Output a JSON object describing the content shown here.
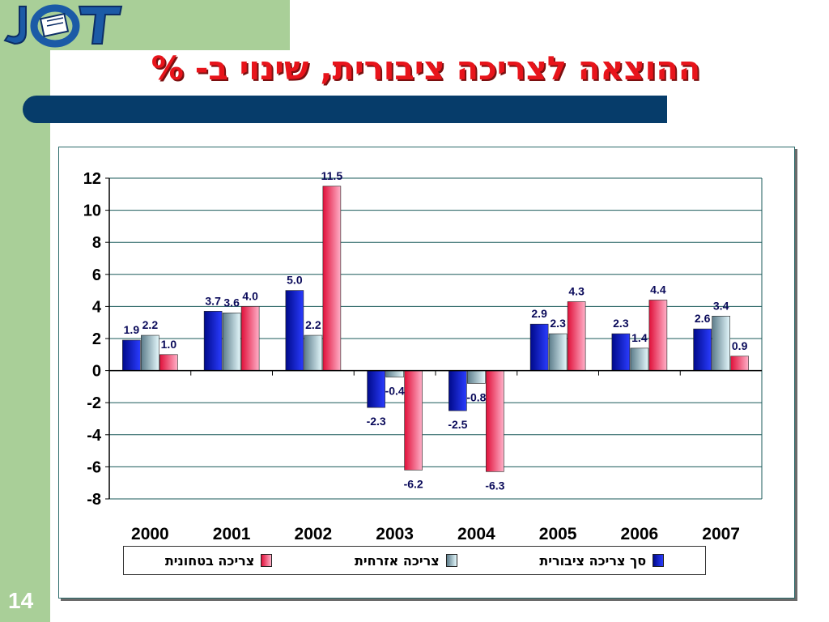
{
  "slide": {
    "title": "ההוצאה לצריכה ציבורית, שינוי ב- %",
    "page_number": "14",
    "logo_text": "JCT"
  },
  "colors": {
    "green_strip": "#a9cf98",
    "title_red": "#e8141b",
    "title_bar": "#063c6a",
    "series_total": "#0a14c8",
    "series_civil": "#c8ecf2",
    "series_defense": "#f06080"
  },
  "chart_data": {
    "type": "bar",
    "title": "",
    "xlabel": "",
    "ylabel": "",
    "categories": [
      "2000",
      "2001",
      "2002",
      "2003",
      "2004",
      "2005",
      "2006",
      "2007"
    ],
    "ylim": [
      -8,
      12
    ],
    "yticks": [
      "12",
      "10",
      "8",
      "6",
      "4",
      "2",
      "0",
      "-2",
      "-4",
      "-6",
      "-8"
    ],
    "grid": true,
    "legend_position": "bottom",
    "series": [
      {
        "name": "סך צריכה ציבורית",
        "color": "#0a14c8",
        "values": [
          1.9,
          3.7,
          5.0,
          -2.3,
          -2.5,
          2.9,
          2.3,
          2.6
        ],
        "labels": [
          "1.9",
          "3.7",
          "5.0",
          "-2.3",
          "-2.5",
          "2.9",
          "2.3",
          "2.6"
        ]
      },
      {
        "name": "צריכה אזרחית",
        "color": "#c8ecf2",
        "values": [
          2.2,
          3.6,
          2.2,
          -0.4,
          -0.8,
          2.3,
          1.4,
          3.4
        ],
        "labels": [
          "2.2",
          "3.6",
          "2.2",
          "-0.4",
          "-0.8",
          "2.3",
          "1.4",
          "3.4"
        ]
      },
      {
        "name": "צריכה בטחונית",
        "color": "#f06080",
        "values": [
          1.0,
          4.0,
          11.5,
          -6.2,
          -6.3,
          4.3,
          4.4,
          0.9
        ],
        "labels": [
          "1.0",
          "4.0",
          "11.5",
          "-6.2",
          "-6.3",
          "4.3",
          "4.4",
          "0.9"
        ]
      }
    ]
  }
}
